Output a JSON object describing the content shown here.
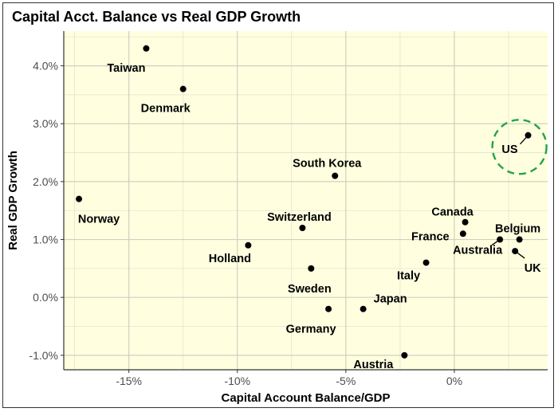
{
  "chart_data": {
    "type": "scatter",
    "title": "Capital Acct. Balance vs Real GDP Growth",
    "xlabel": "Capital Account Balance/GDP",
    "ylabel": "Real GDP Growth",
    "xlim": [
      -18,
      4.3
    ],
    "ylim": [
      -1.25,
      4.6
    ],
    "x_ticks": [
      -15,
      -10,
      -5,
      0
    ],
    "x_tick_labels": [
      "-15%",
      "-10%",
      "-5%",
      "0%"
    ],
    "y_ticks": [
      -1,
      0,
      1,
      2,
      3,
      4
    ],
    "y_tick_labels": [
      "-1.0%",
      "0.0%",
      "1.0%",
      "2.0%",
      "3.0%",
      "4.0%"
    ],
    "grid": true,
    "background": "#ffffe0",
    "point_color": "#000000",
    "highlight_color": "#22a447",
    "points": [
      {
        "label": "Taiwan",
        "x": -14.2,
        "y": 4.3
      },
      {
        "label": "Denmark",
        "x": -12.5,
        "y": 3.6
      },
      {
        "label": "US",
        "x": 3.4,
        "y": 2.8
      },
      {
        "label": "South Korea",
        "x": -5.5,
        "y": 2.1
      },
      {
        "label": "Norway",
        "x": -17.3,
        "y": 1.7
      },
      {
        "label": "Canada",
        "x": 0.5,
        "y": 1.3
      },
      {
        "label": "Switzerland",
        "x": -7.0,
        "y": 1.2
      },
      {
        "label": "France",
        "x": 0.4,
        "y": 1.1
      },
      {
        "label": "Belgium",
        "x": 3.0,
        "y": 1.0
      },
      {
        "label": "Australia",
        "x": 2.1,
        "y": 1.0
      },
      {
        "label": "Holland",
        "x": -9.5,
        "y": 0.9
      },
      {
        "label": "UK",
        "x": 2.8,
        "y": 0.8
      },
      {
        "label": "Italy",
        "x": -1.3,
        "y": 0.6
      },
      {
        "label": "Sweden",
        "x": -6.6,
        "y": 0.5
      },
      {
        "label": "Japan",
        "x": -4.2,
        "y": -0.2
      },
      {
        "label": "Germany",
        "x": -5.8,
        "y": -0.2
      },
      {
        "label": "Austria",
        "x": -2.3,
        "y": -1.0
      }
    ],
    "highlight": {
      "label": "US",
      "center_x": 3.0,
      "center_y": 2.6
    }
  }
}
